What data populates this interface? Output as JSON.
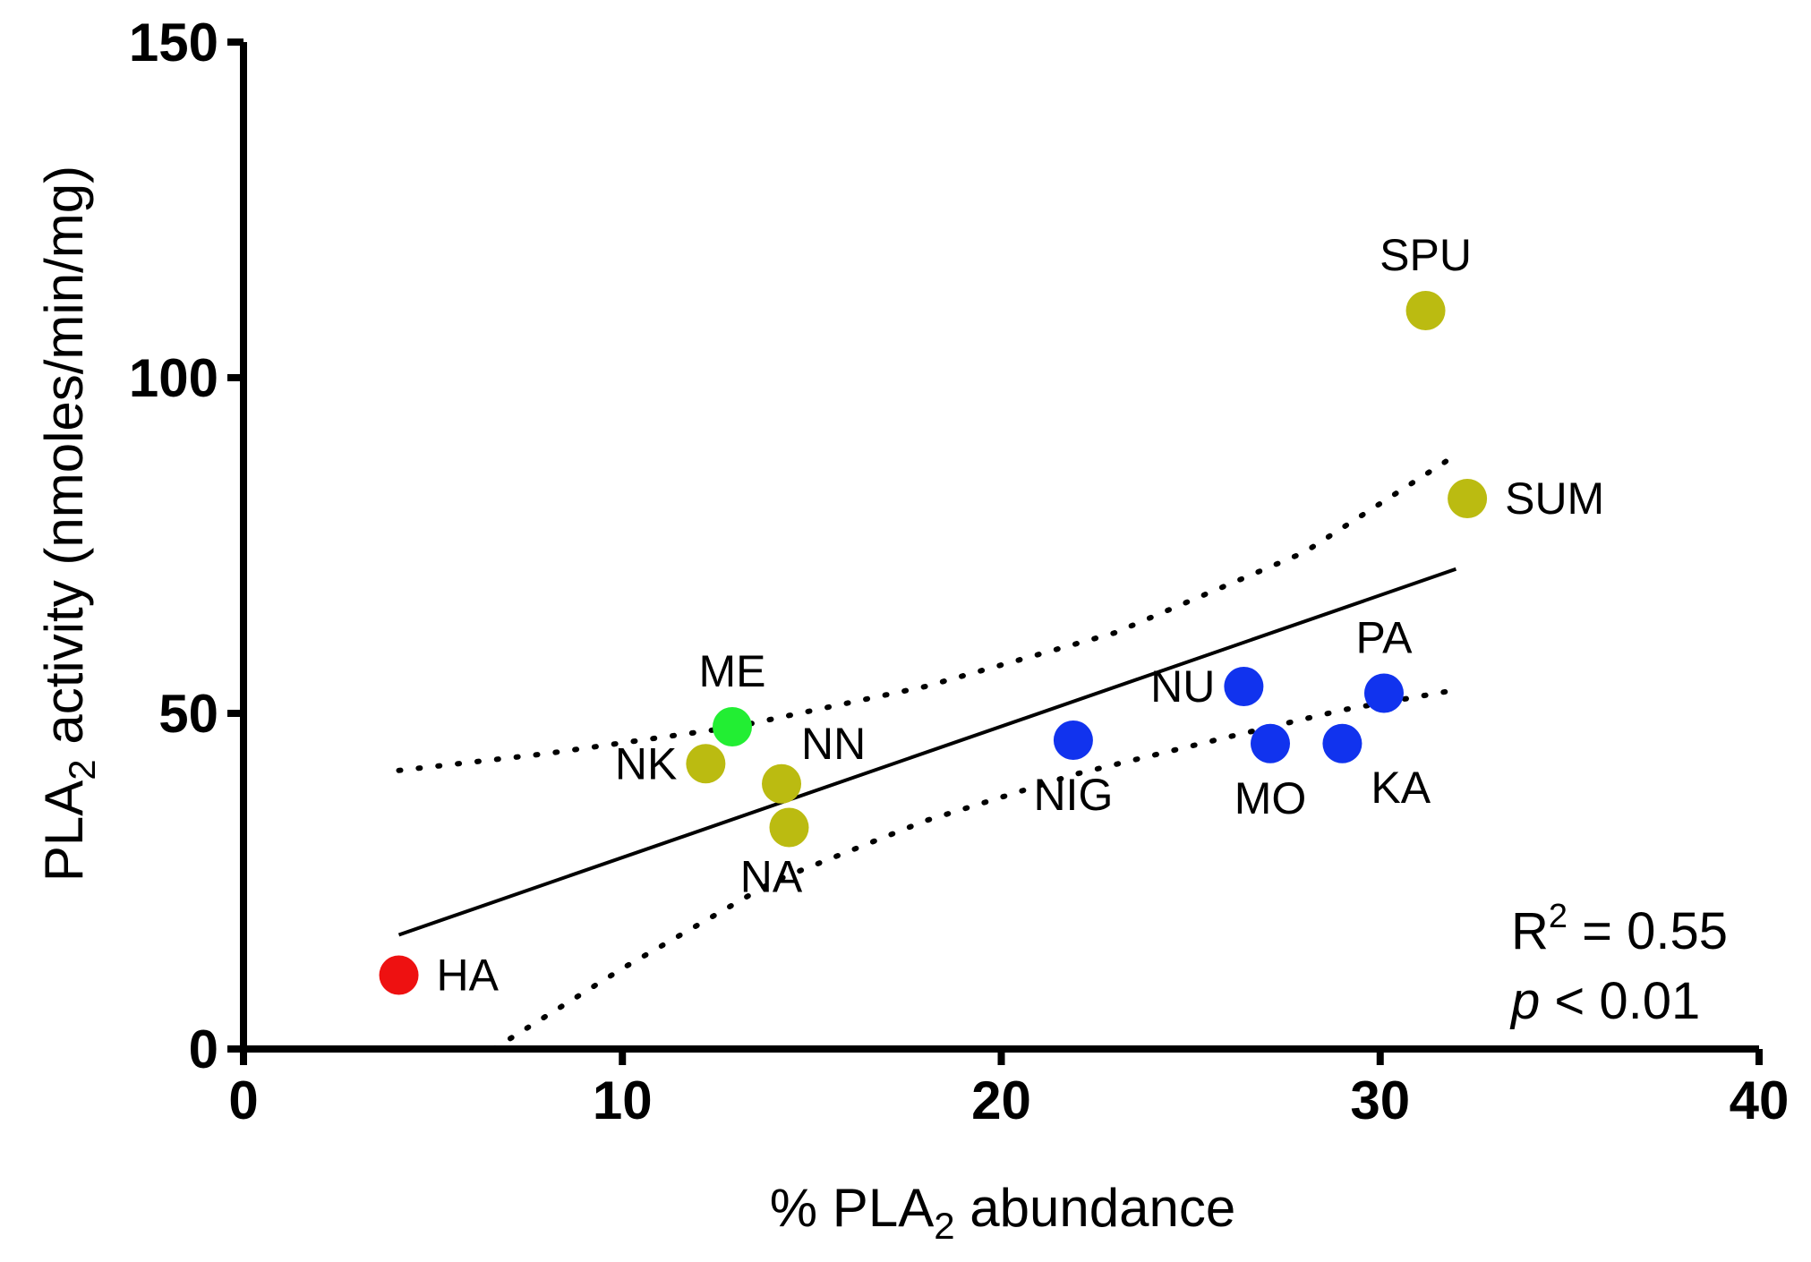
{
  "chart_data": {
    "type": "scatter",
    "title": "",
    "xlabel": {
      "main": "% PLA",
      "sub": "2",
      "rest": " abundance"
    },
    "ylabel": {
      "main": "PLA",
      "sub": "2",
      "rest": " activity (nmoles/min/mg)"
    },
    "xlim": [
      0,
      40
    ],
    "ylim": [
      0,
      150
    ],
    "xticks": [
      0,
      10,
      20,
      30,
      40
    ],
    "yticks": [
      0,
      50,
      100,
      150
    ],
    "points": [
      {
        "label": "HA",
        "x": 4.1,
        "y": 11,
        "color": "#ee1111",
        "label_pos": "right"
      },
      {
        "label": "ME",
        "x": 12.9,
        "y": 48,
        "color": "#22ee33",
        "label_pos": "above"
      },
      {
        "label": "NK",
        "x": 12.2,
        "y": 42.5,
        "color": "#bbbb11",
        "label_pos": "left"
      },
      {
        "label": "NN",
        "x": 14.2,
        "y": 39.5,
        "color": "#bbbb11",
        "label_pos": "above-right"
      },
      {
        "label": "NA",
        "x": 14.4,
        "y": 33,
        "color": "#bbbb11",
        "label_pos": "below-left"
      },
      {
        "label": "NIG",
        "x": 21.9,
        "y": 46,
        "color": "#1133ee",
        "label_pos": "below"
      },
      {
        "label": "NU",
        "x": 26.4,
        "y": 54,
        "color": "#1133ee",
        "label_pos": "left"
      },
      {
        "label": "MO",
        "x": 27.1,
        "y": 45.5,
        "color": "#1133ee",
        "label_pos": "below"
      },
      {
        "label": "KA",
        "x": 29.0,
        "y": 45.5,
        "color": "#1133ee",
        "label_pos": "below-right"
      },
      {
        "label": "PA",
        "x": 30.1,
        "y": 53,
        "color": "#1133ee",
        "label_pos": "above"
      },
      {
        "label": "SPU",
        "x": 31.2,
        "y": 110,
        "color": "#bbbb11",
        "label_pos": "above"
      },
      {
        "label": "SUM",
        "x": 32.3,
        "y": 82,
        "color": "#bbbb11",
        "label_pos": "right"
      }
    ],
    "regression": {
      "x_start": 4.1,
      "x_end": 32.0,
      "y_start": 17,
      "y_end": 71.5
    },
    "ci_upper": [
      [
        4.1,
        41.5
      ],
      [
        8,
        44
      ],
      [
        13,
        48
      ],
      [
        18,
        54
      ],
      [
        23,
        62
      ],
      [
        28,
        74
      ],
      [
        32,
        88.5
      ]
    ],
    "ci_lower": [
      [
        6.6,
        0
      ],
      [
        10,
        12
      ],
      [
        14,
        25
      ],
      [
        18,
        34
      ],
      [
        22,
        41
      ],
      [
        26,
        46.5
      ],
      [
        29,
        50.5
      ],
      [
        32,
        53.5
      ]
    ],
    "stats": {
      "r2_label": "R",
      "r2_sup": "2",
      "r2_value": " = 0.55",
      "p_italic": "p",
      "p_value": " < 0.01"
    }
  }
}
